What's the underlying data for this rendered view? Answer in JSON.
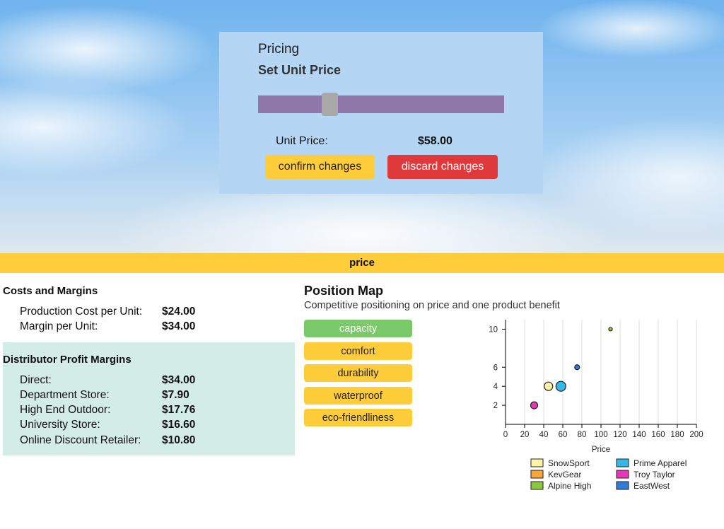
{
  "pricing": {
    "title": "Pricing",
    "subtitle": "Set Unit Price",
    "slider_value": 58,
    "slider_min": 0,
    "slider_max": 200,
    "unit_price_label": "Unit Price:",
    "unit_price_value": "$58.00",
    "confirm_label": "confirm changes",
    "discard_label": "discard changes"
  },
  "section_title": "price",
  "costs": {
    "title": "Costs and Margins",
    "rows": [
      {
        "label": "Production Cost per Unit:",
        "value": "$24.00"
      },
      {
        "label": "Margin per Unit:",
        "value": "$34.00"
      }
    ]
  },
  "distributor": {
    "title": "Distributor Profit Margins",
    "rows": [
      {
        "label": "Direct:",
        "value": "$34.00"
      },
      {
        "label": "Department Store:",
        "value": "$7.90"
      },
      {
        "label": "High End Outdoor:",
        "value": "$17.76"
      },
      {
        "label": "University Store:",
        "value": "$16.60"
      },
      {
        "label": "Online Discount Retailer:",
        "value": "$10.80"
      }
    ]
  },
  "position_map": {
    "title": "Position Map",
    "subtitle": "Competitive positioning on price and one product benefit",
    "benefits": [
      {
        "label": "capacity",
        "active": true
      },
      {
        "label": "comfort",
        "active": false
      },
      {
        "label": "durability",
        "active": false
      },
      {
        "label": "waterproof",
        "active": false
      },
      {
        "label": "eco-friendliness",
        "active": false
      }
    ]
  },
  "chart_data": {
    "type": "scatter",
    "xlabel": "Price",
    "ylabel": "",
    "xlim": [
      0,
      200
    ],
    "ylim": [
      0,
      11
    ],
    "x_ticks": [
      0,
      20,
      40,
      60,
      80,
      100,
      120,
      140,
      160,
      180,
      200
    ],
    "y_ticks": [
      2,
      4,
      6,
      10
    ],
    "grid": "vertical",
    "legend_position": "bottom",
    "series": [
      {
        "name": "SnowSport",
        "color": "#fff5a8",
        "points": [
          {
            "x": 45,
            "y": 4,
            "size": 6
          }
        ]
      },
      {
        "name": "Prime Apparel",
        "color": "#34b8e6",
        "points": [
          {
            "x": 58,
            "y": 4,
            "size": 7
          }
        ]
      },
      {
        "name": "KevGear",
        "color": "#f5a63c",
        "points": []
      },
      {
        "name": "Troy Taylor",
        "color": "#e935b7",
        "points": [
          {
            "x": 30,
            "y": 2,
            "size": 5
          }
        ]
      },
      {
        "name": "Alpine High",
        "color": "#8cc63f",
        "points": [
          {
            "x": 110,
            "y": 10,
            "size": 2.5
          }
        ]
      },
      {
        "name": "EastWest",
        "color": "#2f7bd8",
        "points": [
          {
            "x": 75,
            "y": 6,
            "size": 3.5
          }
        ]
      }
    ]
  }
}
